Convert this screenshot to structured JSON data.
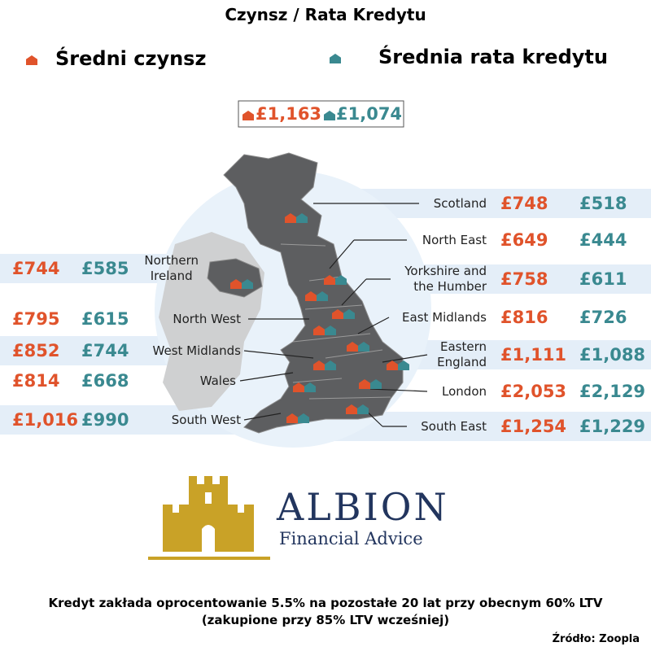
{
  "title": "Czynsz / Rata Kredytu",
  "legend": [
    {
      "label": "Średni czynsz",
      "color": "#e0532b"
    },
    {
      "label": "Średnia rata kredytu",
      "color": "#3a8990"
    }
  ],
  "national": {
    "rent": "£1,163",
    "mortgage": "£1,074"
  },
  "right_regions": [
    {
      "name": [
        "Scotland"
      ],
      "rent": "£748",
      "mortgage": "£518"
    },
    {
      "name": [
        "North East"
      ],
      "rent": "£649",
      "mortgage": "£444"
    },
    {
      "name": [
        "Yorkshire and",
        "the Humber"
      ],
      "rent": "£758",
      "mortgage": "£611"
    },
    {
      "name": [
        "East Midlands"
      ],
      "rent": "£816",
      "mortgage": "£726"
    },
    {
      "name": [
        "Eastern",
        "England"
      ],
      "rent": "£1,111",
      "mortgage": "£1,088"
    },
    {
      "name": [
        "London"
      ],
      "rent": "£2,053",
      "mortgage": "£2,129"
    },
    {
      "name": [
        "South East"
      ],
      "rent": "£1,254",
      "mortgage": "£1,229"
    }
  ],
  "left_regions": [
    {
      "name": [
        "Northern",
        "Ireland"
      ],
      "rent": "£744",
      "mortgage": "£585"
    },
    {
      "name": [
        "North West"
      ],
      "rent": "£795",
      "mortgage": "£615"
    },
    {
      "name": [
        "West Midlands"
      ],
      "rent": "£852",
      "mortgage": "£744"
    },
    {
      "name": [
        "Wales"
      ],
      "rent": "£814",
      "mortgage": "£668"
    },
    {
      "name": [
        "South West"
      ],
      "rent": "£1,016",
      "mortgage": "£990"
    }
  ],
  "logo": {
    "name": "ALBION",
    "tagline": "Financial Advice"
  },
  "footnote": [
    "Kredyt zakłada oprocentowanie 5.5% na pozostałe 20 lat przy obecnym  60% LTV",
    "(zakupione przy 85% LTV wcześniej)"
  ],
  "source": "Źródło: Zoopla"
}
